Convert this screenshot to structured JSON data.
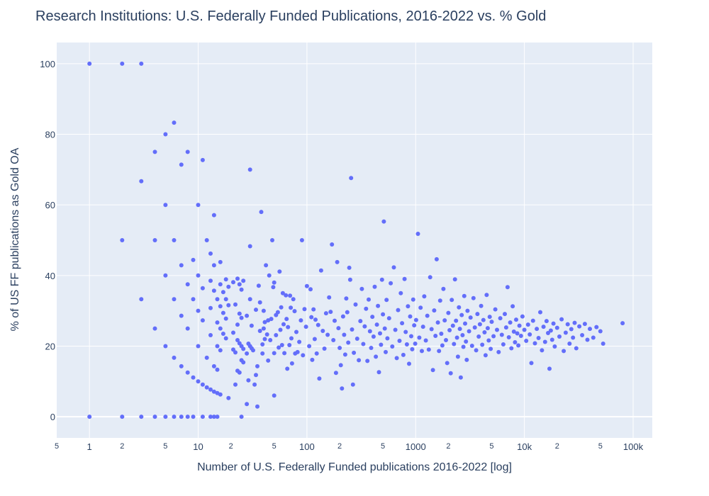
{
  "chart_data": {
    "type": "scatter",
    "title": "Research Institutions: U.S. Federally Funded Publications, 2016-2022 vs. % Gold",
    "xlabel": "Number of U.S. Federally Funded publications 2016-2022 [log]",
    "ylabel": "% of US FF publications as Gold OA",
    "x_scale": "log",
    "xlim": [
      0.5,
      150000
    ],
    "ylim": [
      -6,
      106
    ],
    "grid": true,
    "marker_color": "#636efa",
    "plot_bg": "#e5ecf6",
    "x_major_ticks": [
      {
        "value": 1,
        "label": "1"
      },
      {
        "value": 10,
        "label": "10"
      },
      {
        "value": 100,
        "label": "100"
      },
      {
        "value": 1000,
        "label": "1000"
      },
      {
        "value": 10000,
        "label": "10k"
      },
      {
        "value": 100000,
        "label": "100k"
      }
    ],
    "x_minor_ticks": [
      {
        "value": 0.5,
        "label": "5"
      },
      {
        "value": 2,
        "label": "2"
      },
      {
        "value": 5,
        "label": "5"
      },
      {
        "value": 20,
        "label": "2"
      },
      {
        "value": 50,
        "label": "5"
      },
      {
        "value": 200,
        "label": "2"
      },
      {
        "value": 500,
        "label": "5"
      },
      {
        "value": 2000,
        "label": "2"
      },
      {
        "value": 5000,
        "label": "5"
      },
      {
        "value": 20000,
        "label": "2"
      },
      {
        "value": 50000,
        "label": "5"
      }
    ],
    "y_ticks": [
      0,
      20,
      40,
      60,
      80,
      100
    ],
    "points": [
      [
        1,
        100
      ],
      [
        2,
        100
      ],
      [
        3,
        100
      ],
      [
        1,
        0
      ],
      [
        2,
        0
      ],
      [
        3,
        0
      ],
      [
        4,
        0
      ],
      [
        5,
        0
      ],
      [
        6,
        0
      ],
      [
        7,
        0
      ],
      [
        8,
        0
      ],
      [
        9,
        0
      ],
      [
        11,
        0
      ],
      [
        13,
        0
      ],
      [
        14,
        0
      ],
      [
        15,
        0
      ],
      [
        25,
        0
      ],
      [
        2,
        50
      ],
      [
        3,
        66.7
      ],
      [
        3,
        33.3
      ],
      [
        4,
        75
      ],
      [
        4,
        50
      ],
      [
        4,
        25
      ],
      [
        5,
        80
      ],
      [
        5,
        60
      ],
      [
        5,
        40
      ],
      [
        5,
        20
      ],
      [
        6,
        83.3
      ],
      [
        6,
        50
      ],
      [
        6,
        33.3
      ],
      [
        6,
        16.7
      ],
      [
        7,
        71.4
      ],
      [
        7,
        42.9
      ],
      [
        7,
        28.6
      ],
      [
        7,
        14.3
      ],
      [
        8,
        75
      ],
      [
        8,
        37.5
      ],
      [
        8,
        25
      ],
      [
        8,
        12.5
      ],
      [
        9,
        44.4
      ],
      [
        9,
        33.3
      ],
      [
        9,
        11.1
      ],
      [
        10,
        60
      ],
      [
        10,
        40
      ],
      [
        10,
        30
      ],
      [
        10,
        20
      ],
      [
        10,
        10
      ],
      [
        11,
        72.7
      ],
      [
        11,
        36.4
      ],
      [
        11,
        27.3
      ],
      [
        11,
        9.1
      ],
      [
        12,
        50
      ],
      [
        12,
        16.7
      ],
      [
        12,
        8.3
      ],
      [
        13,
        46.2
      ],
      [
        13,
        38.5
      ],
      [
        13,
        30.8
      ],
      [
        13,
        23.1
      ],
      [
        13,
        7.7
      ],
      [
        14,
        57.1
      ],
      [
        14,
        42.9
      ],
      [
        14,
        35.7
      ],
      [
        14,
        14.3
      ],
      [
        14,
        7.1
      ],
      [
        15,
        33.3
      ],
      [
        15,
        26.7
      ],
      [
        15,
        20
      ],
      [
        15,
        13.3
      ],
      [
        15,
        6.7
      ],
      [
        16,
        43.8
      ],
      [
        16,
        37.5
      ],
      [
        16,
        31.3
      ],
      [
        16,
        25
      ],
      [
        16,
        18.8
      ],
      [
        16,
        6.3
      ],
      [
        17,
        35.3
      ],
      [
        17,
        29.4
      ],
      [
        17,
        23.5
      ],
      [
        18,
        38.9
      ],
      [
        18,
        33.3
      ],
      [
        18,
        27.8
      ],
      [
        18,
        22.2
      ],
      [
        19,
        36.8
      ],
      [
        19,
        31.6
      ],
      [
        19,
        5.3
      ],
      [
        21,
        38.1
      ],
      [
        21,
        23.8
      ],
      [
        21,
        19
      ],
      [
        22,
        31.8
      ],
      [
        22,
        18.2
      ],
      [
        22,
        9.1
      ],
      [
        23,
        39.1
      ],
      [
        23,
        26.1
      ],
      [
        23,
        21.7
      ],
      [
        23,
        13
      ],
      [
        24,
        37.5
      ],
      [
        24,
        29.2
      ],
      [
        24,
        20.8
      ],
      [
        24,
        12.5
      ],
      [
        25,
        36
      ],
      [
        25,
        28
      ],
      [
        25,
        20
      ],
      [
        25,
        16
      ],
      [
        26,
        38.5
      ],
      [
        26,
        19.2
      ],
      [
        26,
        15.4
      ],
      [
        28,
        28.6
      ],
      [
        28,
        17.9
      ],
      [
        28,
        3.6
      ],
      [
        29,
        20.7
      ],
      [
        29,
        10.3
      ],
      [
        30,
        70
      ],
      [
        30,
        48.3
      ],
      [
        30,
        33.3
      ],
      [
        30,
        20
      ],
      [
        31,
        25.8
      ],
      [
        31,
        19.4
      ],
      [
        32,
        18.8
      ],
      [
        33,
        9.1
      ],
      [
        34,
        30.3
      ],
      [
        34,
        11.8
      ],
      [
        35,
        14.3
      ],
      [
        35,
        2.9
      ],
      [
        36,
        37.1
      ],
      [
        37,
        32.4
      ],
      [
        37,
        24.3
      ],
      [
        38,
        58
      ],
      [
        39,
        20.5
      ],
      [
        39,
        17.9
      ],
      [
        40,
        30
      ],
      [
        40,
        25
      ],
      [
        41,
        26.8
      ],
      [
        41,
        22
      ],
      [
        42,
        42.9
      ],
      [
        43,
        23.3
      ],
      [
        44,
        27.3
      ],
      [
        44,
        15.9
      ],
      [
        45,
        40
      ],
      [
        46,
        21.7
      ],
      [
        47,
        27.7
      ],
      [
        48,
        50
      ],
      [
        49,
        36.7
      ],
      [
        50,
        38
      ],
      [
        50,
        18
      ],
      [
        50,
        6
      ],
      [
        52,
        28.8
      ],
      [
        52,
        23.1
      ],
      [
        54,
        29.6
      ],
      [
        55,
        19.6
      ],
      [
        56,
        41.1
      ],
      [
        57,
        24.6
      ],
      [
        58,
        31
      ],
      [
        59,
        20.3
      ],
      [
        60,
        35
      ],
      [
        61,
        26.2
      ],
      [
        62,
        18
      ],
      [
        64,
        34.4
      ],
      [
        65,
        27.7
      ],
      [
        66,
        13.6
      ],
      [
        67,
        25.4
      ],
      [
        69,
        20.3
      ],
      [
        70,
        34.3
      ],
      [
        71,
        30.9
      ],
      [
        72,
        22.2
      ],
      [
        73,
        15.1
      ],
      [
        75,
        33.3
      ],
      [
        77,
        29.9
      ],
      [
        78,
        17.9
      ],
      [
        80,
        24
      ],
      [
        82,
        18.3
      ],
      [
        85,
        21.2
      ],
      [
        88,
        27.3
      ],
      [
        90,
        50
      ],
      [
        92,
        17.4
      ],
      [
        95,
        30.5
      ],
      [
        98,
        25.5
      ],
      [
        100,
        37
      ],
      [
        105,
        20
      ],
      [
        108,
        36.1
      ],
      [
        110,
        28.2
      ],
      [
        112,
        16.1
      ],
      [
        115,
        30.4
      ],
      [
        118,
        22
      ],
      [
        120,
        27.5
      ],
      [
        123,
        17.9
      ],
      [
        127,
        26
      ],
      [
        130,
        10.8
      ],
      [
        135,
        41.4
      ],
      [
        140,
        24.3
      ],
      [
        145,
        19.3
      ],
      [
        150,
        29.3
      ],
      [
        155,
        23.2
      ],
      [
        160,
        33.8
      ],
      [
        165,
        29.7
      ],
      [
        170,
        48.8
      ],
      [
        175,
        21.7
      ],
      [
        180,
        27.2
      ],
      [
        185,
        12.4
      ],
      [
        190,
        43.8
      ],
      [
        195,
        25.1
      ],
      [
        200,
        19.5
      ],
      [
        205,
        14.6
      ],
      [
        210,
        8
      ],
      [
        215,
        28.4
      ],
      [
        220,
        23.2
      ],
      [
        225,
        17.6
      ],
      [
        230,
        33.5
      ],
      [
        235,
        29.6
      ],
      [
        240,
        21
      ],
      [
        245,
        42.2
      ],
      [
        250,
        38.8
      ],
      [
        255,
        67.6
      ],
      [
        260,
        24.7
      ],
      [
        265,
        9.1
      ],
      [
        270,
        18.1
      ],
      [
        280,
        31.8
      ],
      [
        290,
        22.1
      ],
      [
        300,
        16
      ],
      [
        310,
        27.1
      ],
      [
        320,
        36.2
      ],
      [
        330,
        20.6
      ],
      [
        340,
        25.6
      ],
      [
        350,
        30.6
      ],
      [
        360,
        15.8
      ],
      [
        370,
        33.2
      ],
      [
        380,
        24.2
      ],
      [
        390,
        19.5
      ],
      [
        400,
        28.3
      ],
      [
        410,
        22.7
      ],
      [
        420,
        36.8
      ],
      [
        430,
        17
      ],
      [
        440,
        26.1
      ],
      [
        450,
        31.4
      ],
      [
        460,
        12.6
      ],
      [
        470,
        23.6
      ],
      [
        480,
        20.4
      ],
      [
        490,
        38.8
      ],
      [
        500,
        29
      ],
      [
        510,
        55.3
      ],
      [
        520,
        25
      ],
      [
        530,
        18.3
      ],
      [
        540,
        33.1
      ],
      [
        550,
        22.2
      ],
      [
        570,
        27.9
      ],
      [
        590,
        37.8
      ],
      [
        610,
        19.9
      ],
      [
        630,
        42.3
      ],
      [
        650,
        24.6
      ],
      [
        670,
        16.6
      ],
      [
        690,
        30.2
      ],
      [
        710,
        21.5
      ],
      [
        730,
        35
      ],
      [
        750,
        26.5
      ],
      [
        770,
        17.5
      ],
      [
        790,
        39
      ],
      [
        810,
        24
      ],
      [
        830,
        20.5
      ],
      [
        850,
        31.3
      ],
      [
        870,
        15
      ],
      [
        890,
        28.4
      ],
      [
        910,
        22.8
      ],
      [
        930,
        19.1
      ],
      [
        950,
        33.2
      ],
      [
        970,
        25.9
      ],
      [
        990,
        20.7
      ],
      [
        1010,
        27.4
      ],
      [
        1050,
        51.8
      ],
      [
        1080,
        22.4
      ],
      [
        1110,
        30.9
      ],
      [
        1140,
        18.6
      ],
      [
        1170,
        25.5
      ],
      [
        1200,
        34.1
      ],
      [
        1240,
        21.6
      ],
      [
        1280,
        28.6
      ],
      [
        1320,
        19
      ],
      [
        1360,
        39.5
      ],
      [
        1400,
        24.8
      ],
      [
        1440,
        13.2
      ],
      [
        1480,
        30.1
      ],
      [
        1520,
        22.9
      ],
      [
        1560,
        44.6
      ],
      [
        1600,
        26.7
      ],
      [
        1640,
        18.6
      ],
      [
        1680,
        32.9
      ],
      [
        1720,
        23.5
      ],
      [
        1760,
        20.2
      ],
      [
        1800,
        36.2
      ],
      [
        1850,
        27.3
      ],
      [
        1900,
        21.7
      ],
      [
        1950,
        15.2
      ],
      [
        2000,
        29.4
      ],
      [
        2050,
        24.5
      ],
      [
        2100,
        12.3
      ],
      [
        2150,
        33.1
      ],
      [
        2200,
        25.8
      ],
      [
        2250,
        20.6
      ],
      [
        2300,
        38.9
      ],
      [
        2350,
        27.2
      ],
      [
        2400,
        22.4
      ],
      [
        2450,
        17
      ],
      [
        2500,
        31
      ],
      [
        2550,
        24.9
      ],
      [
        2600,
        11.1
      ],
      [
        2650,
        28.8
      ],
      [
        2700,
        23.1
      ],
      [
        2750,
        19.8
      ],
      [
        2800,
        34.2
      ],
      [
        2850,
        26.4
      ],
      [
        2900,
        21.3
      ],
      [
        2950,
        16.1
      ],
      [
        3000,
        30
      ],
      [
        3100,
        24.2
      ],
      [
        3200,
        28.1
      ],
      [
        3300,
        20.1
      ],
      [
        3400,
        33.6
      ],
      [
        3500,
        25.3
      ],
      [
        3600,
        18.8
      ],
      [
        3700,
        29.1
      ],
      [
        3800,
        22.7
      ],
      [
        3900,
        26.2
      ],
      [
        4000,
        31.4
      ],
      [
        4100,
        20.4
      ],
      [
        4200,
        27.4
      ],
      [
        4300,
        23.9
      ],
      [
        4400,
        17.4
      ],
      [
        4500,
        34.5
      ],
      [
        4600,
        25.1
      ],
      [
        4700,
        21.6
      ],
      [
        4800,
        28.3
      ],
      [
        4900,
        19.2
      ],
      [
        5000,
        26.9
      ],
      [
        5200,
        22.8
      ],
      [
        5400,
        30.4
      ],
      [
        5600,
        24.6
      ],
      [
        5800,
        18.3
      ],
      [
        6000,
        27.9
      ],
      [
        6200,
        23.2
      ],
      [
        6400,
        20.5
      ],
      [
        6600,
        29.1
      ],
      [
        6800,
        25.3
      ],
      [
        7000,
        36.7
      ],
      [
        7200,
        22.5
      ],
      [
        7400,
        26.7
      ],
      [
        7600,
        19.4
      ],
      [
        7800,
        31.3
      ],
      [
        8000,
        24.1
      ],
      [
        8200,
        21.1
      ],
      [
        8400,
        27.5
      ],
      [
        8600,
        23.6
      ],
      [
        8800,
        20.2
      ],
      [
        9000,
        25.8
      ],
      [
        9300,
        22.9
      ],
      [
        9600,
        28.4
      ],
      [
        10000,
        24.6
      ],
      [
        10400,
        21.5
      ],
      [
        10800,
        26.1
      ],
      [
        11200,
        23.3
      ],
      [
        11600,
        15.2
      ],
      [
        12000,
        27.2
      ],
      [
        12500,
        20.8
      ],
      [
        13000,
        24.9
      ],
      [
        13500,
        22.3
      ],
      [
        14000,
        29.6
      ],
      [
        14500,
        18.8
      ],
      [
        15000,
        25.5
      ],
      [
        15500,
        21.2
      ],
      [
        16000,
        27.1
      ],
      [
        16500,
        23.7
      ],
      [
        17000,
        13.6
      ],
      [
        17500,
        24.4
      ],
      [
        18000,
        21.8
      ],
      [
        18500,
        26.4
      ],
      [
        19000,
        19.9
      ],
      [
        20000,
        25.2
      ],
      [
        21000,
        22.7
      ],
      [
        22000,
        27.6
      ],
      [
        23000,
        18.6
      ],
      [
        24000,
        23.8
      ],
      [
        25000,
        26.2
      ],
      [
        26000,
        20.7
      ],
      [
        27000,
        24.8
      ],
      [
        28000,
        22.4
      ],
      [
        29000,
        26.6
      ],
      [
        30000,
        19.4
      ],
      [
        32000,
        25.6
      ],
      [
        34000,
        23.1
      ],
      [
        36000,
        26.3
      ],
      [
        38000,
        21.8
      ],
      [
        40000,
        24.9
      ],
      [
        43000,
        22.4
      ],
      [
        46000,
        25.4
      ],
      [
        50000,
        24.2
      ],
      [
        53000,
        20.7
      ],
      [
        80000,
        26.5
      ]
    ]
  }
}
